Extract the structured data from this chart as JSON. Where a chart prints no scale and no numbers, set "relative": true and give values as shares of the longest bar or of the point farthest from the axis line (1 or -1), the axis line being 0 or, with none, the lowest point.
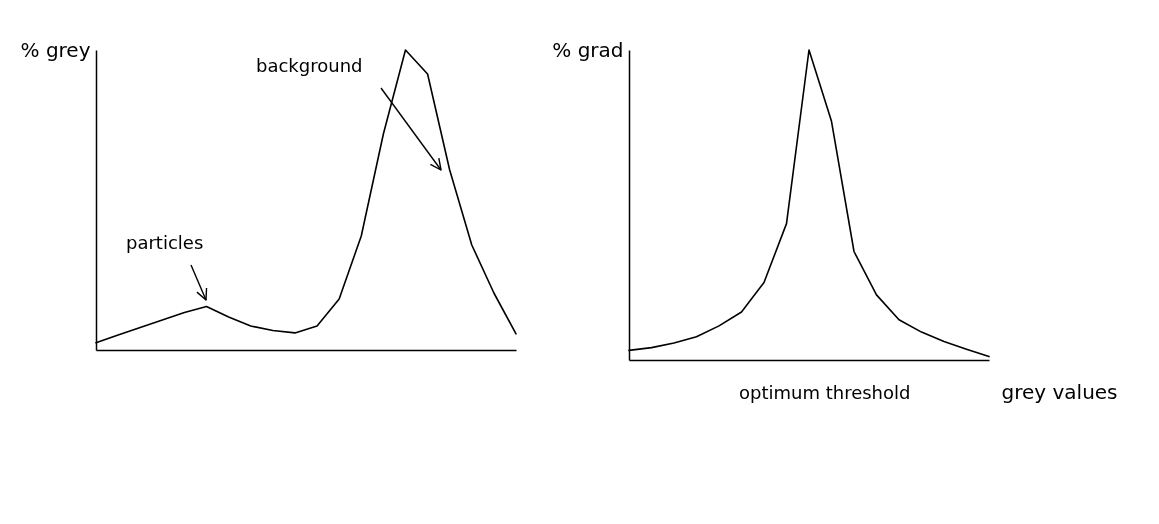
{
  "chart_data": [
    {
      "type": "line",
      "relative": true,
      "ylabel": "% grey",
      "annotations": [
        "particles",
        "background"
      ],
      "categories": [
        null,
        null,
        null,
        null,
        null,
        null,
        null,
        null,
        null,
        null,
        null,
        null,
        null,
        null,
        null,
        null,
        null,
        null,
        null,
        null
      ],
      "series": [
        {
          "color": "#000000",
          "values": [
            0.024,
            0.05,
            0.075,
            0.1,
            0.125,
            0.145,
            0.11,
            0.08,
            0.065,
            0.057,
            0.08,
            0.17,
            0.38,
            0.72,
            1,
            0.92,
            0.6,
            0.35,
            0.19,
            0.054
          ]
        }
      ]
    },
    {
      "type": "line",
      "relative": true,
      "ylabel": "% grad",
      "xlabel": "grey values",
      "annotations": [
        "optimum threshold"
      ],
      "categories": [
        null,
        null,
        null,
        null,
        null,
        null,
        null,
        null,
        null,
        null,
        null,
        null,
        null,
        null,
        null,
        null,
        null
      ],
      "series": [
        {
          "color": "#000000",
          "values": [
            0.031,
            0.04,
            0.055,
            0.075,
            0.11,
            0.155,
            0.25,
            0.44,
            1,
            0.77,
            0.35,
            0.21,
            0.13,
            0.09,
            0.06,
            0.035,
            0.011
          ]
        }
      ]
    }
  ]
}
